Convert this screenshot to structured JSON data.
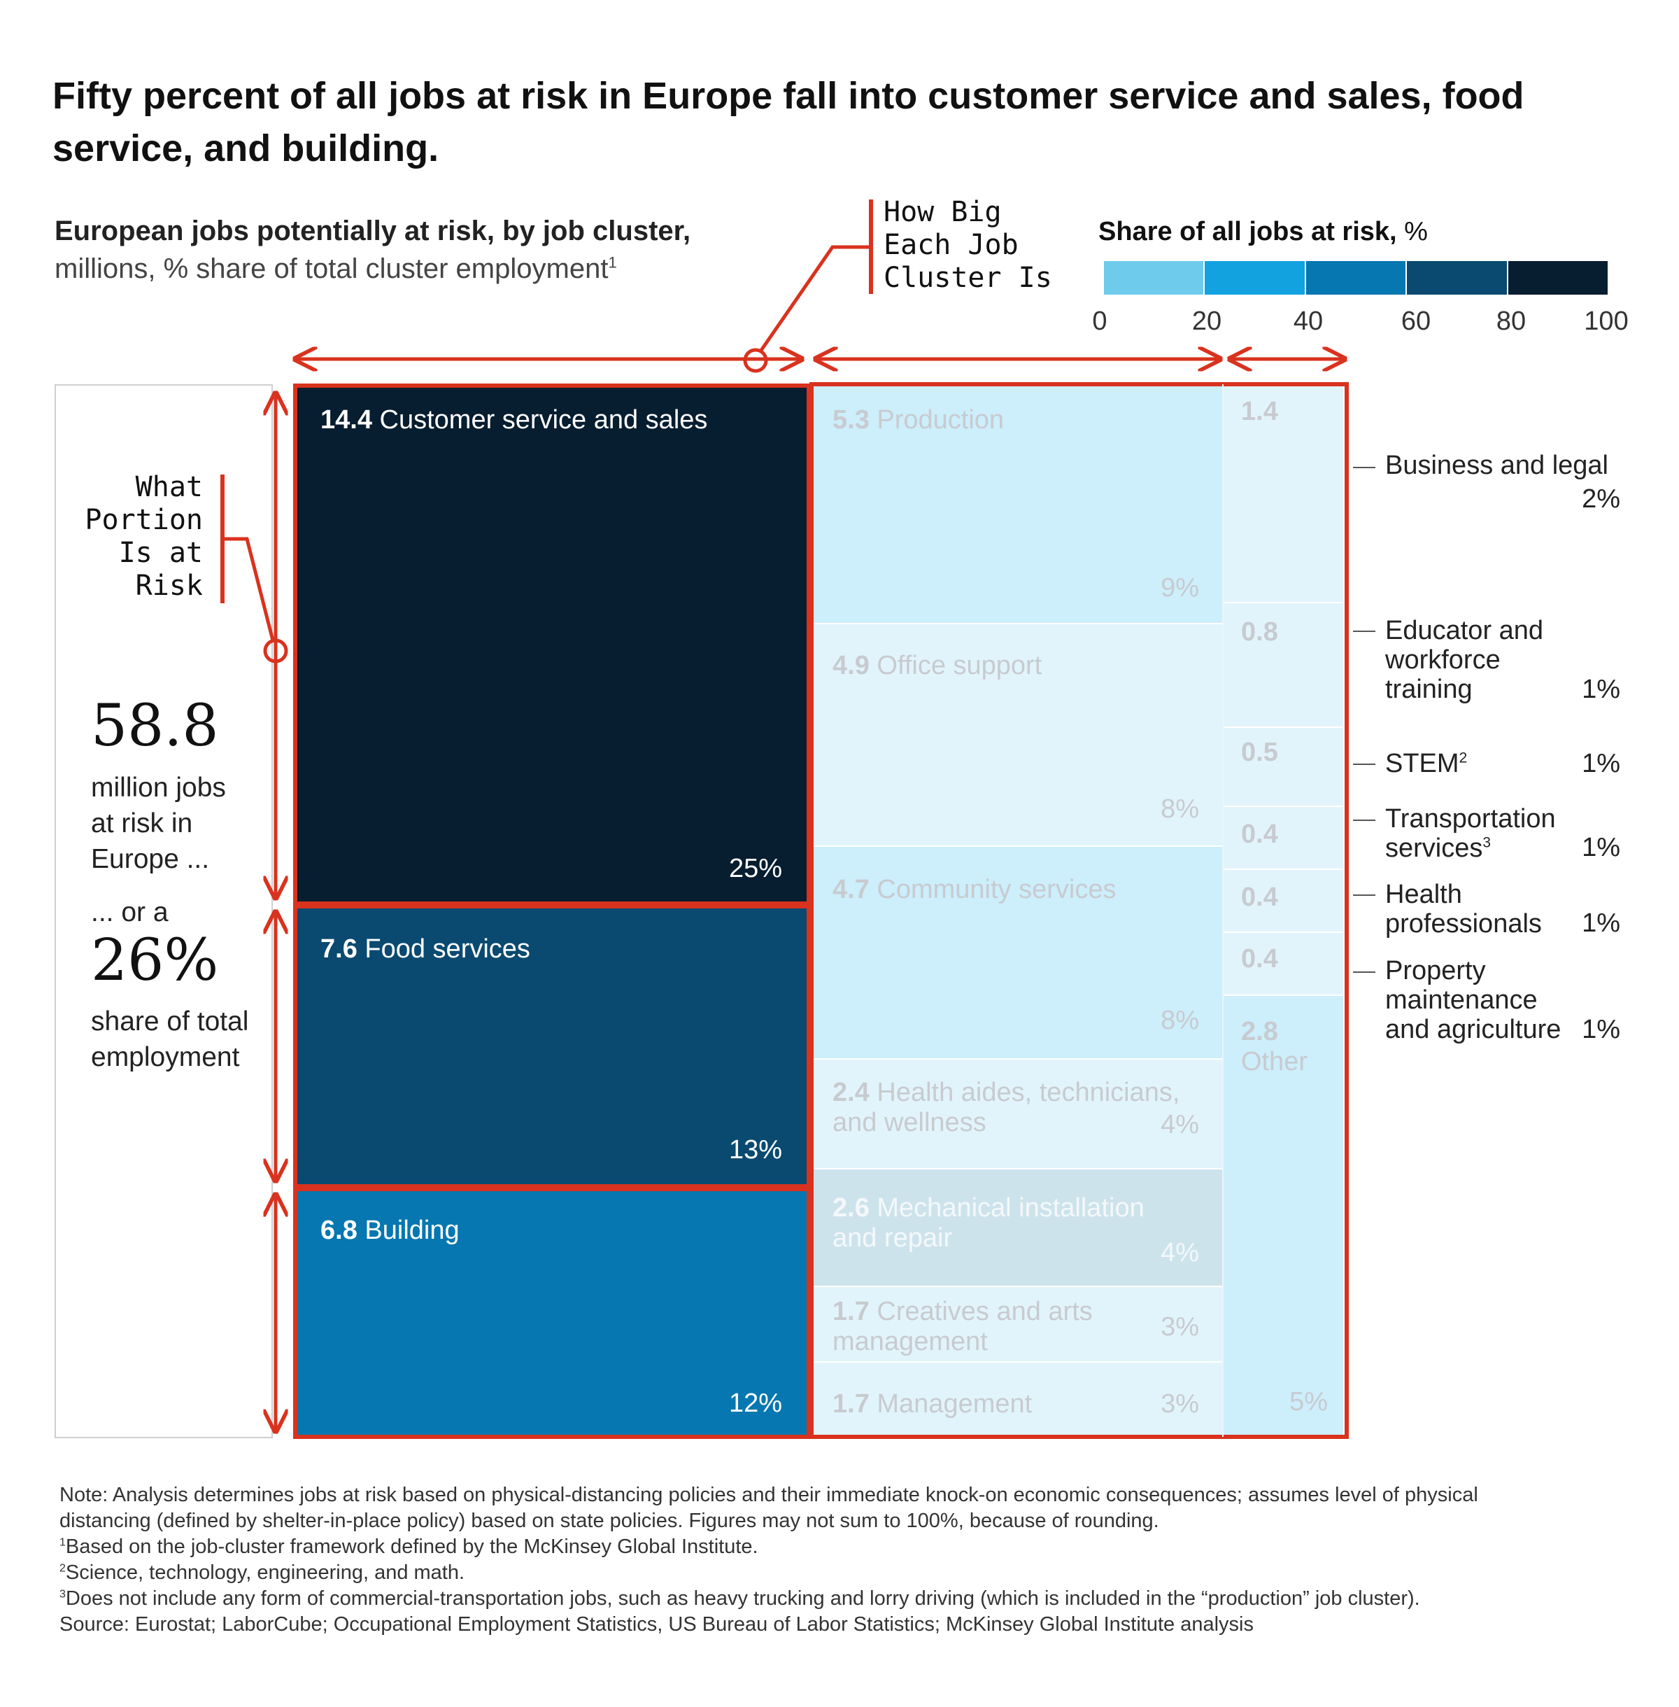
{
  "title": "Fifty percent of all jobs at risk in Europe fall into customer service and sales, food service, and building.",
  "subtitle": {
    "bold": "European jobs potentially at risk, by job cluster,",
    "rest": "millions, % share of total cluster employment",
    "sup": "1"
  },
  "annotations": {
    "how_big": [
      "How Big",
      "Each Job",
      "Cluster Is"
    ],
    "what_portion": [
      "What",
      "Portion",
      "Is at",
      "Risk"
    ]
  },
  "legend": {
    "title_bold": "Share of all jobs at risk,",
    "title_unit": " %",
    "ticks": [
      "0",
      "20",
      "40",
      "60",
      "80",
      "100"
    ],
    "colors": [
      "#6fcbec",
      "#12a2e0",
      "#0677b0",
      "#0a4a70",
      "#071d30"
    ]
  },
  "summary": {
    "total": "58.8",
    "total_label": [
      "million jobs",
      "at risk in",
      "Europe ..."
    ],
    "or_a": "... or a",
    "share": "26%",
    "share_label": [
      "share of total",
      "employment"
    ]
  },
  "chart_data": {
    "type": "treemap",
    "unit": "million jobs at risk",
    "highlight_color": "#d9321e",
    "clusters": [
      {
        "value": "14.4",
        "name": "Customer service and sales",
        "share": "25%",
        "highlighted": true,
        "color": "#071d30"
      },
      {
        "value": "7.6",
        "name": "Food services",
        "share": "13%",
        "highlighted": true,
        "color": "#0a4a70"
      },
      {
        "value": "6.8",
        "name": "Building",
        "share": "12%",
        "highlighted": true,
        "color": "#0677b0"
      },
      {
        "value": "5.3",
        "name": "Production",
        "share": "9%",
        "highlighted": false,
        "color": "#cdeefb"
      },
      {
        "value": "4.9",
        "name": "Office support",
        "share": "8%",
        "highlighted": false,
        "color": "#e2f4fb"
      },
      {
        "value": "4.7",
        "name": "Community services",
        "share": "8%",
        "highlighted": false,
        "color": "#cdeefb"
      },
      {
        "value": "2.4",
        "name": "Health aides, technicians, and wellness",
        "share": "4%",
        "highlighted": false,
        "color": "#e2f4fb"
      },
      {
        "value": "2.6",
        "name": "Mechanical installation and repair",
        "share": "4%",
        "highlighted": false,
        "color": "#cde3ec"
      },
      {
        "value": "1.7",
        "name": "Creatives and arts management",
        "share": "3%",
        "highlighted": false,
        "color": "#e2f4fb"
      },
      {
        "value": "1.7",
        "name": "Management",
        "share": "3%",
        "highlighted": false,
        "color": "#e2f4fb"
      },
      {
        "value": "1.4",
        "name": "Business and legal",
        "share": "2%",
        "highlighted": false,
        "color": "#e2f4fb"
      },
      {
        "value": "0.8",
        "name": "Educator and workforce training",
        "share": "1%",
        "highlighted": false,
        "color": "#e2f4fb"
      },
      {
        "value": "0.5",
        "name": "STEM",
        "share": "1%",
        "highlighted": false,
        "color": "#e2f4fb"
      },
      {
        "value": "0.4",
        "name": "Transportation services",
        "share": "1%",
        "highlighted": false,
        "color": "#e2f4fb"
      },
      {
        "value": "0.4",
        "name": "Health professionals",
        "share": "1%",
        "highlighted": false,
        "color": "#e2f4fb"
      },
      {
        "value": "0.4",
        "name": "Property maintenance and agriculture",
        "share": "1%",
        "highlighted": false,
        "color": "#e2f4fb"
      },
      {
        "value": "2.8",
        "name": "Other",
        "share": "5%",
        "highlighted": false,
        "color": "#cdeefb"
      }
    ]
  },
  "treemap_labels": {
    "cs_value": "14.4",
    "cs_name": "Customer service and sales",
    "cs_share": "25%",
    "fs_value": "7.6",
    "fs_name": "Food services",
    "fs_share": "13%",
    "bd_value": "6.8",
    "bd_name": "Building",
    "bd_share": "12%",
    "pr_value": "5.3",
    "pr_name": "Production",
    "pr_share": "9%",
    "os_value": "4.9",
    "os_name": "Office support",
    "os_share": "8%",
    "cm_value": "4.7",
    "cm_name": "Community services",
    "cm_share": "8%",
    "ha_value": "2.4",
    "ha_name1": "Health aides, technicians,",
    "ha_name2": "and wellness",
    "ha_share": "4%",
    "mi_value": "2.6",
    "mi_name1": "Mechanical installation",
    "mi_name2": "and repair",
    "mi_share": "4%",
    "ca_value": "1.7",
    "ca_name1": "Creatives and arts",
    "ca_name2": "management",
    "ca_share": "3%",
    "mg_value": "1.7",
    "mg_name": "Management",
    "mg_share": "3%",
    "bl_value": "1.4",
    "ed_value": "0.8",
    "st_value": "0.5",
    "tr_value": "0.4",
    "hp_value": "0.4",
    "pm_value": "0.4",
    "ot_value": "2.8",
    "ot_name": "Other",
    "ot_share": "5%"
  },
  "side_labels": {
    "bl": {
      "lines": [
        "Business and legal"
      ],
      "pct": "2%"
    },
    "ed": {
      "lines": [
        "Educator and",
        "workforce",
        "training"
      ],
      "pct": "1%"
    },
    "st": {
      "lines": [
        "STEM"
      ],
      "sup": "2",
      "pct": "1%"
    },
    "tr": {
      "lines": [
        "Transportation",
        "services"
      ],
      "sup": "3",
      "pct": "1%"
    },
    "hp": {
      "lines": [
        "Health",
        "professionals"
      ],
      "pct": "1%"
    },
    "pm": {
      "lines": [
        "Property",
        "maintenance",
        "and agriculture"
      ],
      "pct": "1%"
    }
  },
  "footnotes": {
    "note1": "Note: Analysis determines jobs at risk based on physical-distancing policies and their immediate knock-on economic consequences; assumes level of physical",
    "note2": "distancing (defined by shelter-in-place policy) based on state policies. Figures may not sum to 100%, because of rounding.",
    "fn1": "Based on the job-cluster framework defined by the McKinsey Global Institute.",
    "fn2": "Science, technology, engineering, and math.",
    "fn3": "Does not include any form of commercial-transportation jobs, such as heavy trucking and lorry driving (which is included in the “production” job cluster).",
    "source": "Source: Eurostat; LaborCube; Occupational Employment Statistics, US Bureau of Labor Statistics; McKinsey Global Institute analysis",
    "sup1": "1",
    "sup2": "2",
    "sup3": "3"
  }
}
